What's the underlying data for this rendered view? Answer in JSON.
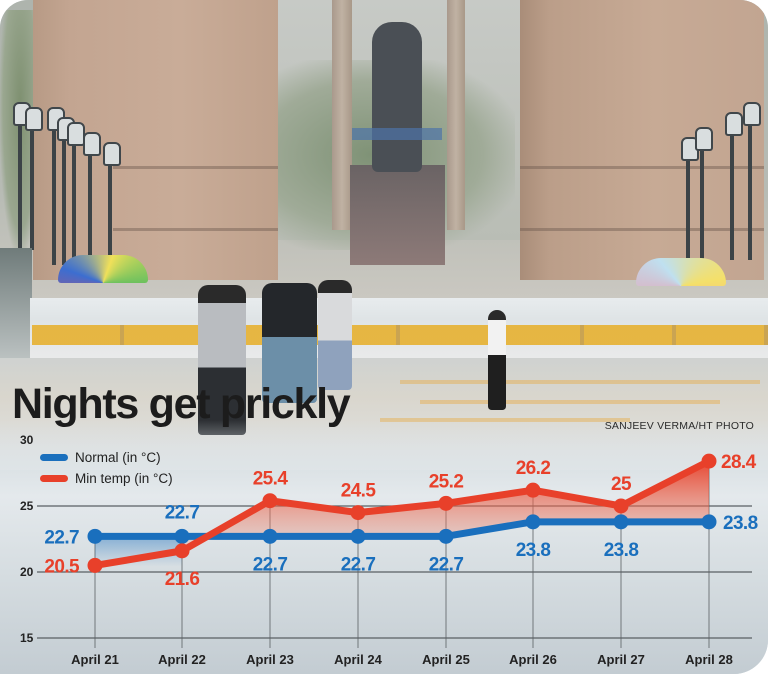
{
  "headline": "Nights get prickly",
  "photo_credit": "SANJEEV VERMA/HT PHOTO",
  "legend": [
    {
      "label": "Normal (in °C)",
      "color": "#1a6fbd"
    },
    {
      "label": "Min temp (in °C)",
      "color": "#e8402a"
    }
  ],
  "colors": {
    "normal": "#1a6fbd",
    "min_temp": "#e8402a",
    "grid": "#555555",
    "text": "#222222"
  },
  "chart_data": {
    "type": "line",
    "title": "Nights get prickly",
    "xlabel": "",
    "ylabel": "",
    "ylim": [
      15,
      30
    ],
    "yticks": [
      15,
      20,
      25,
      30
    ],
    "grid": true,
    "legend_position": "top-left",
    "categories": [
      "April 21",
      "April 22",
      "April 23",
      "April 24",
      "April 25",
      "April 26",
      "April 27",
      "April 28"
    ],
    "series": [
      {
        "name": "Normal (in °C)",
        "values": [
          22.7,
          22.7,
          22.7,
          22.7,
          22.7,
          23.8,
          23.8,
          23.8
        ],
        "labels": [
          "22.7",
          "22.7",
          "22.7",
          "22.7",
          "22.7",
          "23.8",
          "23.8",
          "23.8"
        ]
      },
      {
        "name": "Min temp (in °C)",
        "values": [
          20.5,
          21.6,
          25.4,
          24.5,
          25.2,
          26.2,
          25,
          28.4
        ],
        "labels": [
          "20.5",
          "21.6",
          "25.4",
          "24.5",
          "25.2",
          "26.2",
          "25",
          "28.4"
        ]
      }
    ]
  }
}
